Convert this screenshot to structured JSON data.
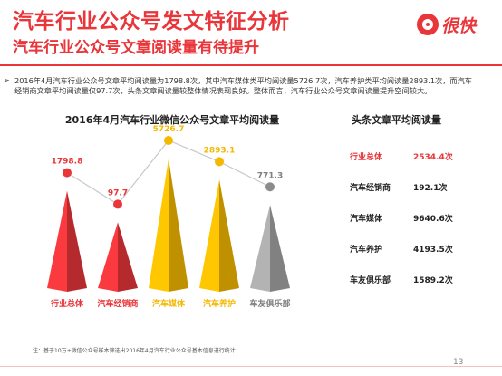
{
  "header": {
    "title": "汽车行业公众号发文特征分析",
    "subtitle": "汽车行业公众号文章阅读量有待提升",
    "logo_text": "很快"
  },
  "body": {
    "bullet": "➢",
    "text": "2016年4月汽车行业公众号文章平均阅读量为1798.8次，其中汽车媒体类平均阅读量5726.7次，汽车养护类平均阅读量2893.1次，而汽车经销商文章平均阅读量仅97.7次，头条文章阅读量较整体情况表现良好。整体而言，汽车行业公众号文章阅读量提升空间较大。"
  },
  "chart_data": {
    "type": "bar",
    "title": "2016年4月汽车行业微信公众号文章平均阅读量",
    "categories": [
      "行业总体",
      "汽车经销商",
      "汽车媒体",
      "汽车养护",
      "车友俱乐部"
    ],
    "values": [
      1798.8,
      97.7,
      5726.7,
      2893.1,
      771.3
    ],
    "value_labels": [
      "1798.8",
      "97.7",
      "5726.7",
      "2893.1",
      "771.3"
    ],
    "colors": [
      "#e8363a",
      "#e8363a",
      "#f5b800",
      "#f5b800",
      "#a6a6a6"
    ],
    "label_colors": [
      "#e8363a",
      "#e8363a",
      "#f5b800",
      "#f5b800",
      "#7f7f7f"
    ],
    "marker_colors": [
      "#e8363a",
      "#e8363a",
      "#f5b800",
      "#f5b800",
      "#8c8c8c"
    ],
    "grid": false,
    "legend": "none"
  },
  "headline_table": {
    "title": "头条文章平均阅读量",
    "rows": [
      {
        "label": "行业总体",
        "value": "2534.4次",
        "color": "#e8363a"
      },
      {
        "label": "汽车经销商",
        "value": "192.1次",
        "color": "#222222"
      },
      {
        "label": "汽车媒体",
        "value": "9640.6次",
        "color": "#222222"
      },
      {
        "label": "汽车养护",
        "value": "4193.5次",
        "color": "#222222"
      },
      {
        "label": "车友俱乐部",
        "value": "1589.2次",
        "color": "#222222"
      }
    ]
  },
  "footer": {
    "note": "注：基于10万+微信公众号样本筛选出2016年4月汽车行业公众号基本信息进行统计",
    "page": "13"
  }
}
